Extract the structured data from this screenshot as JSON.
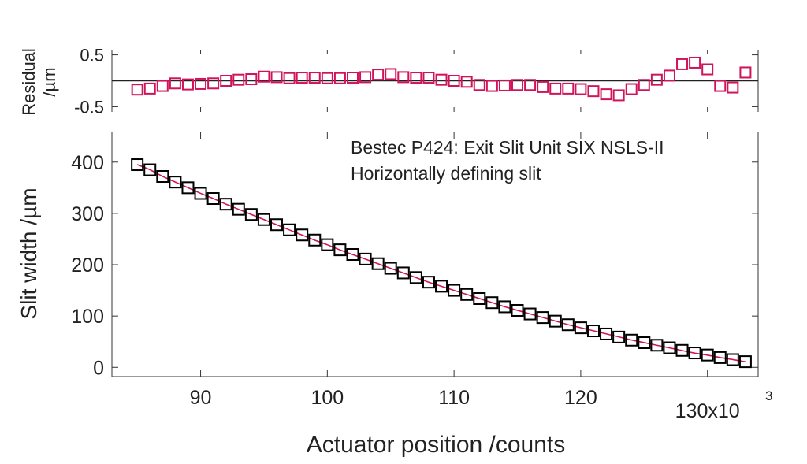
{
  "chart_data": [
    {
      "type": "scatter",
      "panel": "residual",
      "ylabel": "Residual\n/µm",
      "ylim": [
        -0.6,
        0.6
      ],
      "xlim": [
        83000,
        134000
      ],
      "yticks": [
        0.5,
        -0.5
      ],
      "ytick_labels": [
        "0.5",
        "-0.5"
      ],
      "grid": false,
      "zero_line": true,
      "marker": "open-square",
      "color": "#d0145a",
      "x": [
        85000,
        86000,
        87000,
        88000,
        89000,
        90000,
        91000,
        92000,
        93000,
        94000,
        95000,
        96000,
        97000,
        98000,
        99000,
        100000,
        101000,
        102000,
        103000,
        104000,
        105000,
        106000,
        107000,
        108000,
        109000,
        110000,
        111000,
        112000,
        113000,
        114000,
        115000,
        116000,
        117000,
        118000,
        119000,
        120000,
        121000,
        122000,
        123000,
        124000,
        125000,
        126000,
        127000,
        128000,
        129000,
        130000,
        131000,
        132000,
        133000
      ],
      "values": [
        -0.17,
        -0.15,
        -0.1,
        -0.05,
        -0.07,
        -0.06,
        -0.05,
        0.0,
        0.02,
        0.03,
        0.08,
        0.07,
        0.05,
        0.06,
        0.06,
        0.05,
        0.05,
        0.06,
        0.07,
        0.12,
        0.13,
        0.07,
        0.06,
        0.06,
        0.02,
        0.0,
        -0.02,
        -0.08,
        -0.1,
        -0.09,
        -0.08,
        -0.08,
        -0.12,
        -0.15,
        -0.15,
        -0.16,
        -0.2,
        -0.26,
        -0.28,
        -0.16,
        -0.08,
        0.02,
        0.1,
        0.32,
        0.35,
        0.22,
        -0.1,
        -0.13,
        0.16
      ]
    },
    {
      "type": "line",
      "panel": "main",
      "xlabel": "Actuator position /counts",
      "ylabel": "Slit width /µm",
      "xlim": [
        83000,
        134000
      ],
      "ylim": [
        -18,
        458
      ],
      "xticks": [
        90000,
        100000,
        110000,
        120000,
        130000
      ],
      "xtick_labels": [
        "90",
        "100",
        "110",
        "120",
        "130x10"
      ],
      "xtick_exponent": "3",
      "yticks": [
        0,
        100,
        200,
        300,
        400
      ],
      "ytick_labels": [
        "0",
        "100",
        "200",
        "300",
        "400"
      ],
      "grid": false,
      "annotation": [
        "Bestec P424: Exit Slit Unit SIX NSLS-II",
        "Horizontally defining slit"
      ],
      "series": [
        {
          "marker": "open-square",
          "color": "#000000",
          "x": [
            85000,
            86000,
            87000,
            88000,
            89000,
            90000,
            91000,
            92000,
            93000,
            94000,
            95000,
            96000,
            97000,
            98000,
            99000,
            100000,
            101000,
            102000,
            103000,
            104000,
            105000,
            106000,
            107000,
            108000,
            109000,
            110000,
            111000,
            112000,
            113000,
            114000,
            115000,
            116000,
            117000,
            118000,
            119000,
            120000,
            121000,
            122000,
            123000,
            124000,
            125000,
            126000,
            127000,
            128000,
            129000,
            130000,
            131000,
            132000,
            133000
          ],
          "values": [
            395,
            385,
            372,
            361,
            350,
            339,
            329,
            318,
            308,
            298,
            288,
            278,
            268,
            258,
            248,
            239,
            229,
            220,
            211,
            202,
            193,
            184,
            175,
            166,
            158,
            150,
            142,
            134,
            126,
            118,
            111,
            104,
            97,
            90,
            83,
            77,
            71,
            65,
            59,
            53,
            48,
            43,
            38,
            33,
            28,
            24,
            19,
            15,
            11
          ]
        },
        {
          "style": "fit-line",
          "color": "#d0145a",
          "x": [
            85000,
            86000,
            87000,
            88000,
            89000,
            90000,
            91000,
            92000,
            93000,
            94000,
            95000,
            96000,
            97000,
            98000,
            99000,
            100000,
            101000,
            102000,
            103000,
            104000,
            105000,
            106000,
            107000,
            108000,
            109000,
            110000,
            111000,
            112000,
            113000,
            114000,
            115000,
            116000,
            117000,
            118000,
            119000,
            120000,
            121000,
            122000,
            123000,
            124000,
            125000,
            126000,
            127000,
            128000,
            129000,
            130000,
            131000,
            132000,
            133000
          ],
          "values": [
            395.2,
            385.2,
            372.1,
            361.1,
            350.1,
            339.1,
            329.0,
            318.0,
            308.0,
            298.0,
            287.9,
            277.9,
            267.9,
            257.9,
            247.9,
            238.9,
            228.9,
            219.9,
            210.9,
            201.9,
            192.9,
            183.9,
            174.9,
            165.9,
            158.0,
            150.0,
            142.0,
            134.1,
            126.1,
            118.1,
            111.1,
            104.1,
            97.1,
            90.2,
            83.2,
            77.2,
            71.2,
            65.3,
            59.3,
            53.2,
            48.1,
            43.0,
            37.9,
            32.7,
            27.6,
            23.8,
            19.1,
            15.1,
            10.8
          ]
        }
      ]
    }
  ]
}
